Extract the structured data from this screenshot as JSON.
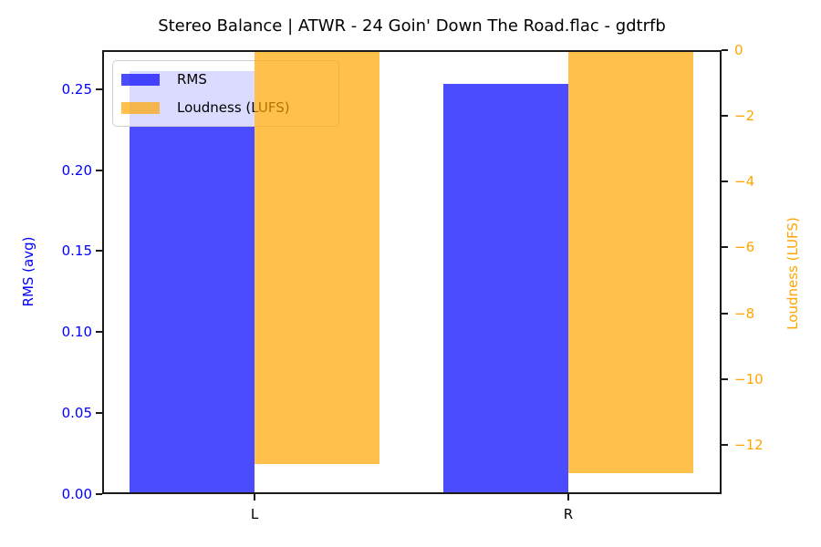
{
  "chart_data": {
    "type": "bar",
    "title": "Stereo Balance | ATWR - 24 Goin' Down The Road.flac - gdtrfb",
    "categories": [
      "L",
      "R"
    ],
    "series": [
      {
        "name": "RMS",
        "axis": "left",
        "fill": "rgba(0,0,255,0.7)",
        "values": [
          0.261,
          0.253
        ]
      },
      {
        "name": "Loudness (LUFS)",
        "axis": "right",
        "fill": "rgba(255,165,0,0.7)",
        "values": [
          -12.59,
          -12.86
        ]
      }
    ],
    "left_axis": {
      "label": "RMS (avg)",
      "color": "#0000ff",
      "ylim": [
        0,
        0.274
      ],
      "ticks": {
        "values": [
          0,
          0.05,
          0.1,
          0.15,
          0.2,
          0.25
        ],
        "labels": [
          "0.00",
          "0.05",
          "0.10",
          "0.15",
          "0.20",
          "0.25"
        ]
      }
    },
    "right_axis": {
      "label": "Loudness (LUFS)",
      "color": "#ffa500",
      "ylim": [
        -13.5,
        0
      ],
      "ticks": {
        "values": [
          0,
          -2,
          -4,
          -6,
          -8,
          -10,
          -12
        ],
        "labels": [
          "0",
          "−2",
          "−4",
          "−6",
          "−8",
          "−10",
          "−12"
        ]
      }
    },
    "legend": {
      "position": "upper left",
      "entries": [
        "RMS",
        "Loudness (LUFS)"
      ]
    },
    "grid": false,
    "background": "#ffffff"
  }
}
